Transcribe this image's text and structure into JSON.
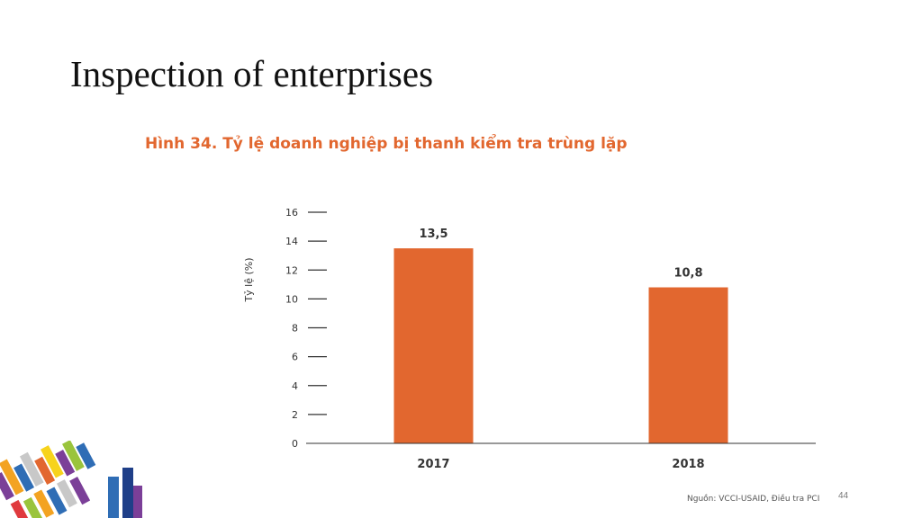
{
  "slide": {
    "title": "Inspection of enterprises",
    "caption": "Hình 34. Tỷ lệ doanh nghiệp bị thanh kiểm tra trùng lặp",
    "source": "Nguồn: VCCI-USAID, Điều tra PCI",
    "page_number": "44"
  },
  "colors": {
    "caption": "#e2672f",
    "bar": "#e2672f",
    "axis": "#333333",
    "text": "#333333"
  },
  "chart_data": {
    "type": "bar",
    "categories": [
      "2017",
      "2018"
    ],
    "values": [
      13.5,
      10.8
    ],
    "value_labels": [
      "13,5",
      "10,8"
    ],
    "ylabel": "Tỷ lệ (%)",
    "xlabel": "",
    "ylim": [
      0,
      16
    ],
    "yticks": [
      0,
      2,
      4,
      6,
      8,
      10,
      12,
      14,
      16
    ],
    "grid": false
  }
}
